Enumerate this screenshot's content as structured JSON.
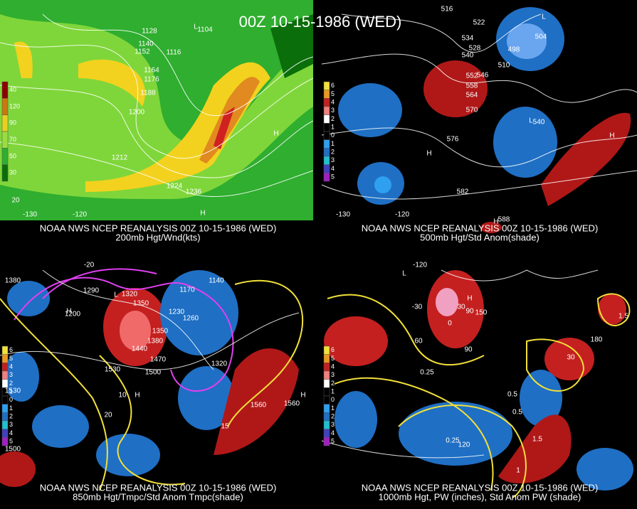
{
  "title": "00Z 10-15-1986 (WED)",
  "panels": [
    {
      "caption": [
        "NOAA NWS NCEP REANALYSIS 00Z 10-15-1986 (WED)",
        "200mb Hgt/Wnd(kts)"
      ],
      "legend": [
        "40",
        "120",
        "90",
        "70",
        "50",
        "30"
      ],
      "labels": [
        "1128",
        "1104",
        "1140",
        "1152",
        "1116",
        "1164",
        "1176",
        "1188",
        "1200",
        "1212",
        "1224",
        "1236",
        "H",
        "L",
        "H",
        "20",
        "-130",
        "-120"
      ]
    },
    {
      "caption": [
        "NOAA NWS NCEP REANALYSIS 00Z 10-15-1986 (WED)",
        "500mb Hgt/Std Anom(shade)"
      ],
      "legend": [
        "6",
        "5",
        "4",
        "3",
        "2",
        "1",
        "0",
        "1",
        "2",
        "3",
        "4",
        "5"
      ],
      "labels": [
        "516",
        "522",
        "534",
        "528",
        "540",
        "504",
        "498",
        "510",
        "L",
        "L",
        "552",
        "558",
        "546",
        "564",
        "570",
        "576",
        "582",
        "540",
        "H",
        "H",
        "H",
        "588",
        "-130",
        "-120"
      ]
    },
    {
      "caption": [
        "NOAA NWS NCEP REANALYSIS 00Z 10-15-1986 (WED)",
        "850mb Hgt/Tmpc/Std Anom Tmpc(shade)"
      ],
      "legend": [
        "6",
        "5",
        "4",
        "3",
        "2",
        "1",
        "0",
        "1",
        "2",
        "3",
        "4",
        "5"
      ],
      "labels": [
        "-20",
        "1380",
        "1290",
        "1200",
        "1320",
        "1350",
        "1170",
        "1140",
        "1230",
        "1260",
        "1350",
        "1380",
        "1440",
        "1470",
        "1500",
        "1530",
        "1530",
        "1560",
        "1500",
        "10",
        "15",
        "20",
        "H",
        "L",
        "H",
        "H",
        "1320",
        "1560"
      ]
    },
    {
      "caption": [
        "NOAA NWS NCEP REANALYSIS 00Z 10-15-1986 (WED)",
        "1000mb Hgt, PW (inches), Std Anom PW (shade)"
      ],
      "legend": [
        "6",
        "5",
        "4",
        "3",
        "2",
        "1",
        "0",
        "1",
        "2",
        "3",
        "4",
        "5"
      ],
      "labels": [
        "-120",
        "0",
        "30",
        "-30",
        "60",
        "90",
        "120",
        "150",
        "180",
        "0.25",
        "0.5",
        "1",
        "1.5",
        "L",
        "H",
        "90",
        "30",
        "0.25",
        "0.5",
        "1.5"
      ]
    }
  ]
}
